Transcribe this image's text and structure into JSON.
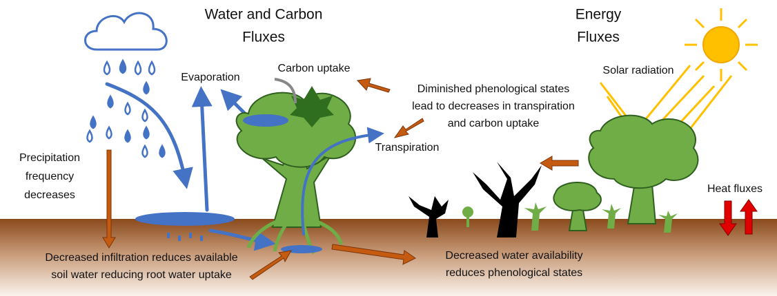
{
  "headings": {
    "water_carbon": [
      "Water  and Carbon",
      "Fluxes"
    ],
    "energy": [
      "Energy",
      "Fluxes"
    ]
  },
  "labels": {
    "carbon_uptake": "Carbon uptake",
    "evaporation": "Evaporation",
    "transpiration": "Transpiration",
    "solar_radiation": "Solar radiation",
    "heat_fluxes": "Heat fluxes"
  },
  "notes": {
    "phenology": [
      "Diminished phenological states",
      "lead to decreases in transpiration",
      "and carbon uptake"
    ],
    "precipitation": [
      "Precipitation",
      "frequency",
      "decreases"
    ],
    "infiltration": [
      "Decreased infiltration reduces available",
      "soil water reducing root water uptake"
    ],
    "water_availability": [
      "Decreased water availability",
      "reduces phenological states"
    ]
  }
}
